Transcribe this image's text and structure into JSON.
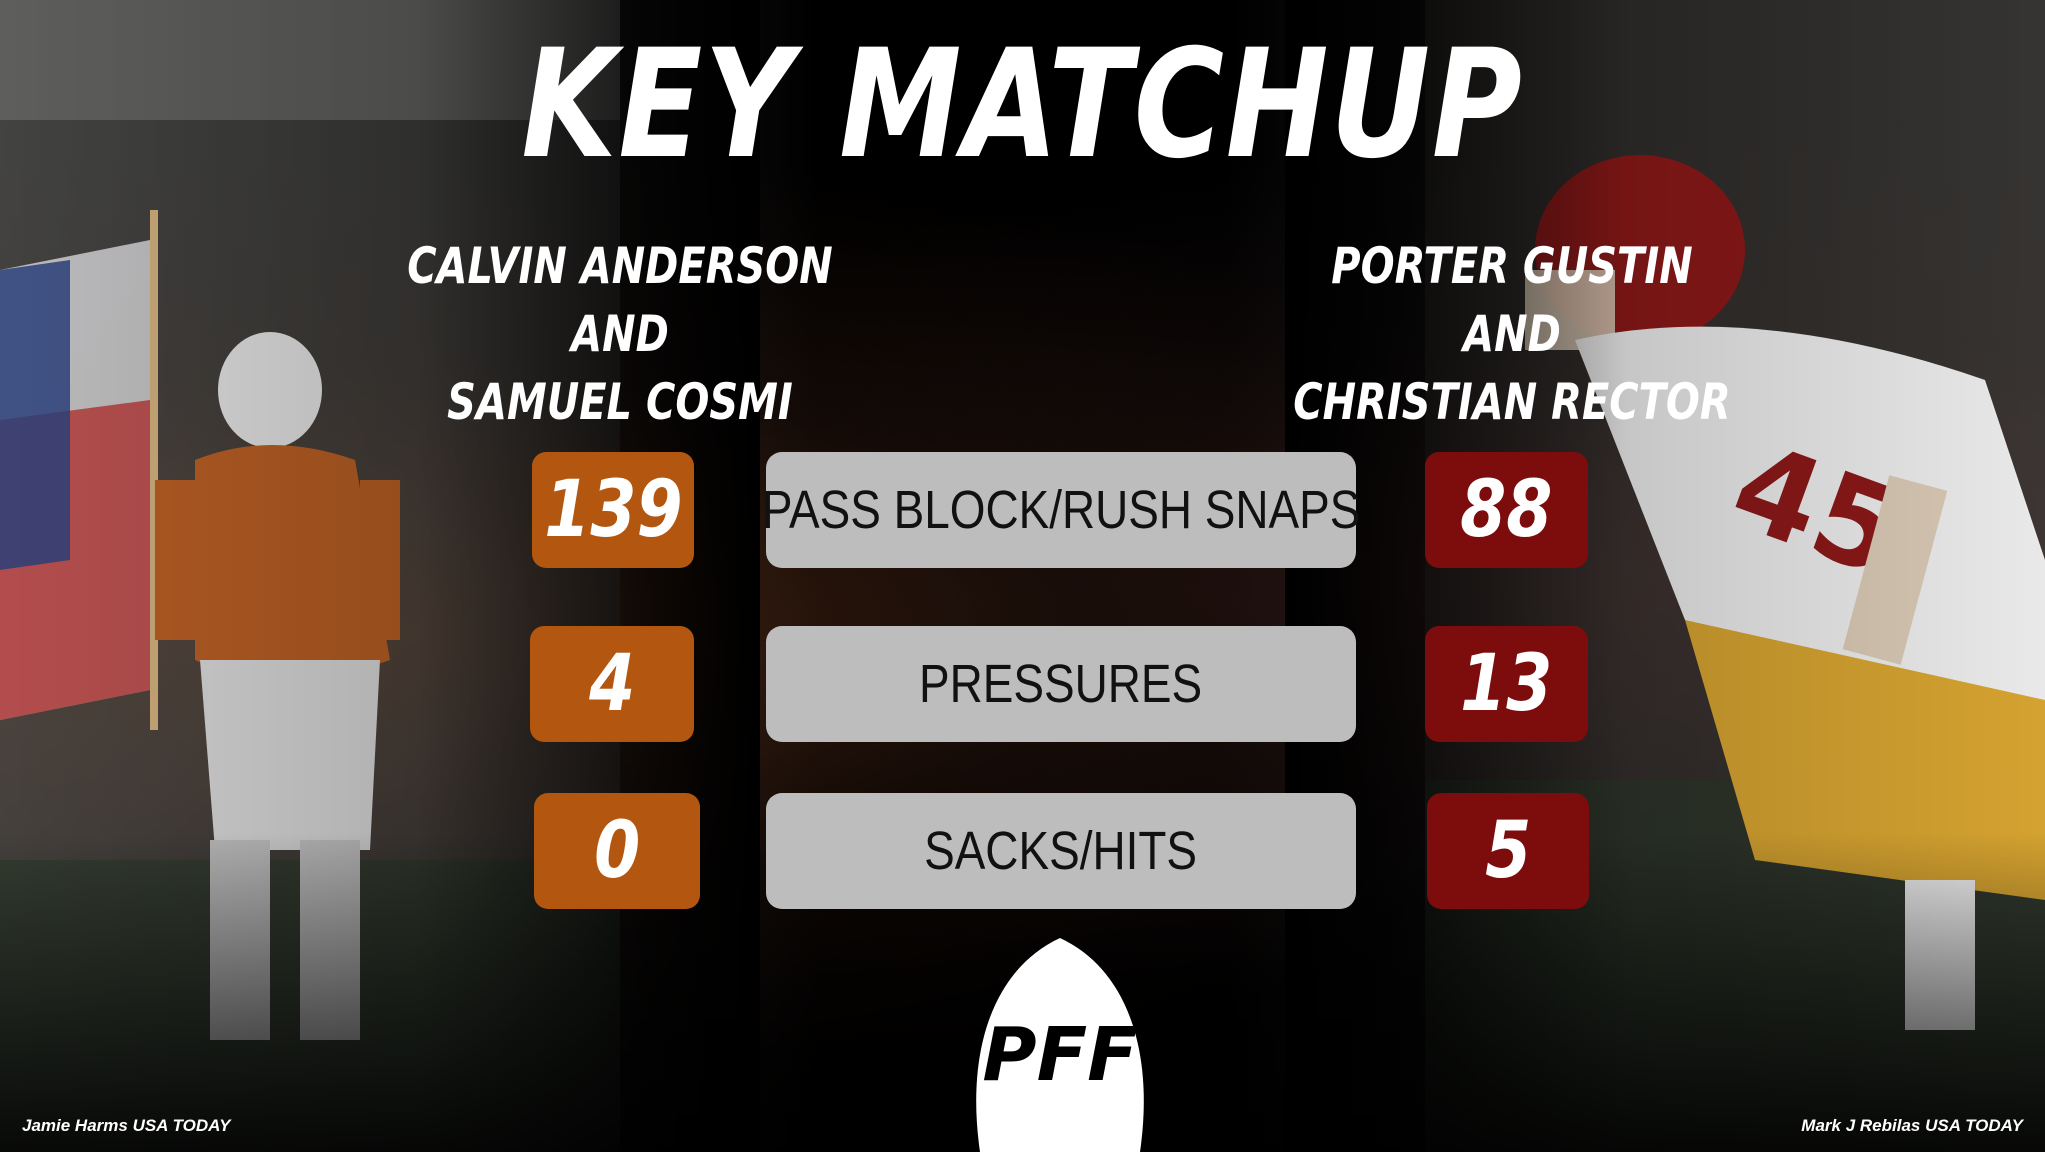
{
  "title": "KEY MATCHUP",
  "left_team": {
    "color": "#b35610",
    "players": [
      "CALVIN ANDERSON",
      "AND",
      "SAMUEL COSMI"
    ]
  },
  "right_team": {
    "color": "#7d0c0d",
    "players": [
      "PORTER GUSTIN",
      "AND",
      "CHRISTIAN RECTOR"
    ]
  },
  "stats": [
    {
      "label": "PASS BLOCK/RUSH SNAPS",
      "left": "139",
      "right": "88"
    },
    {
      "label": "PRESSURES",
      "left": "4",
      "right": "13"
    },
    {
      "label": "SACKS/HITS",
      "left": "0",
      "right": "5"
    }
  ],
  "logo_text": "PFF",
  "credits": {
    "left": "Jamie Harms USA TODAY",
    "right": "Mark J Rebilas USA TODAY"
  }
}
